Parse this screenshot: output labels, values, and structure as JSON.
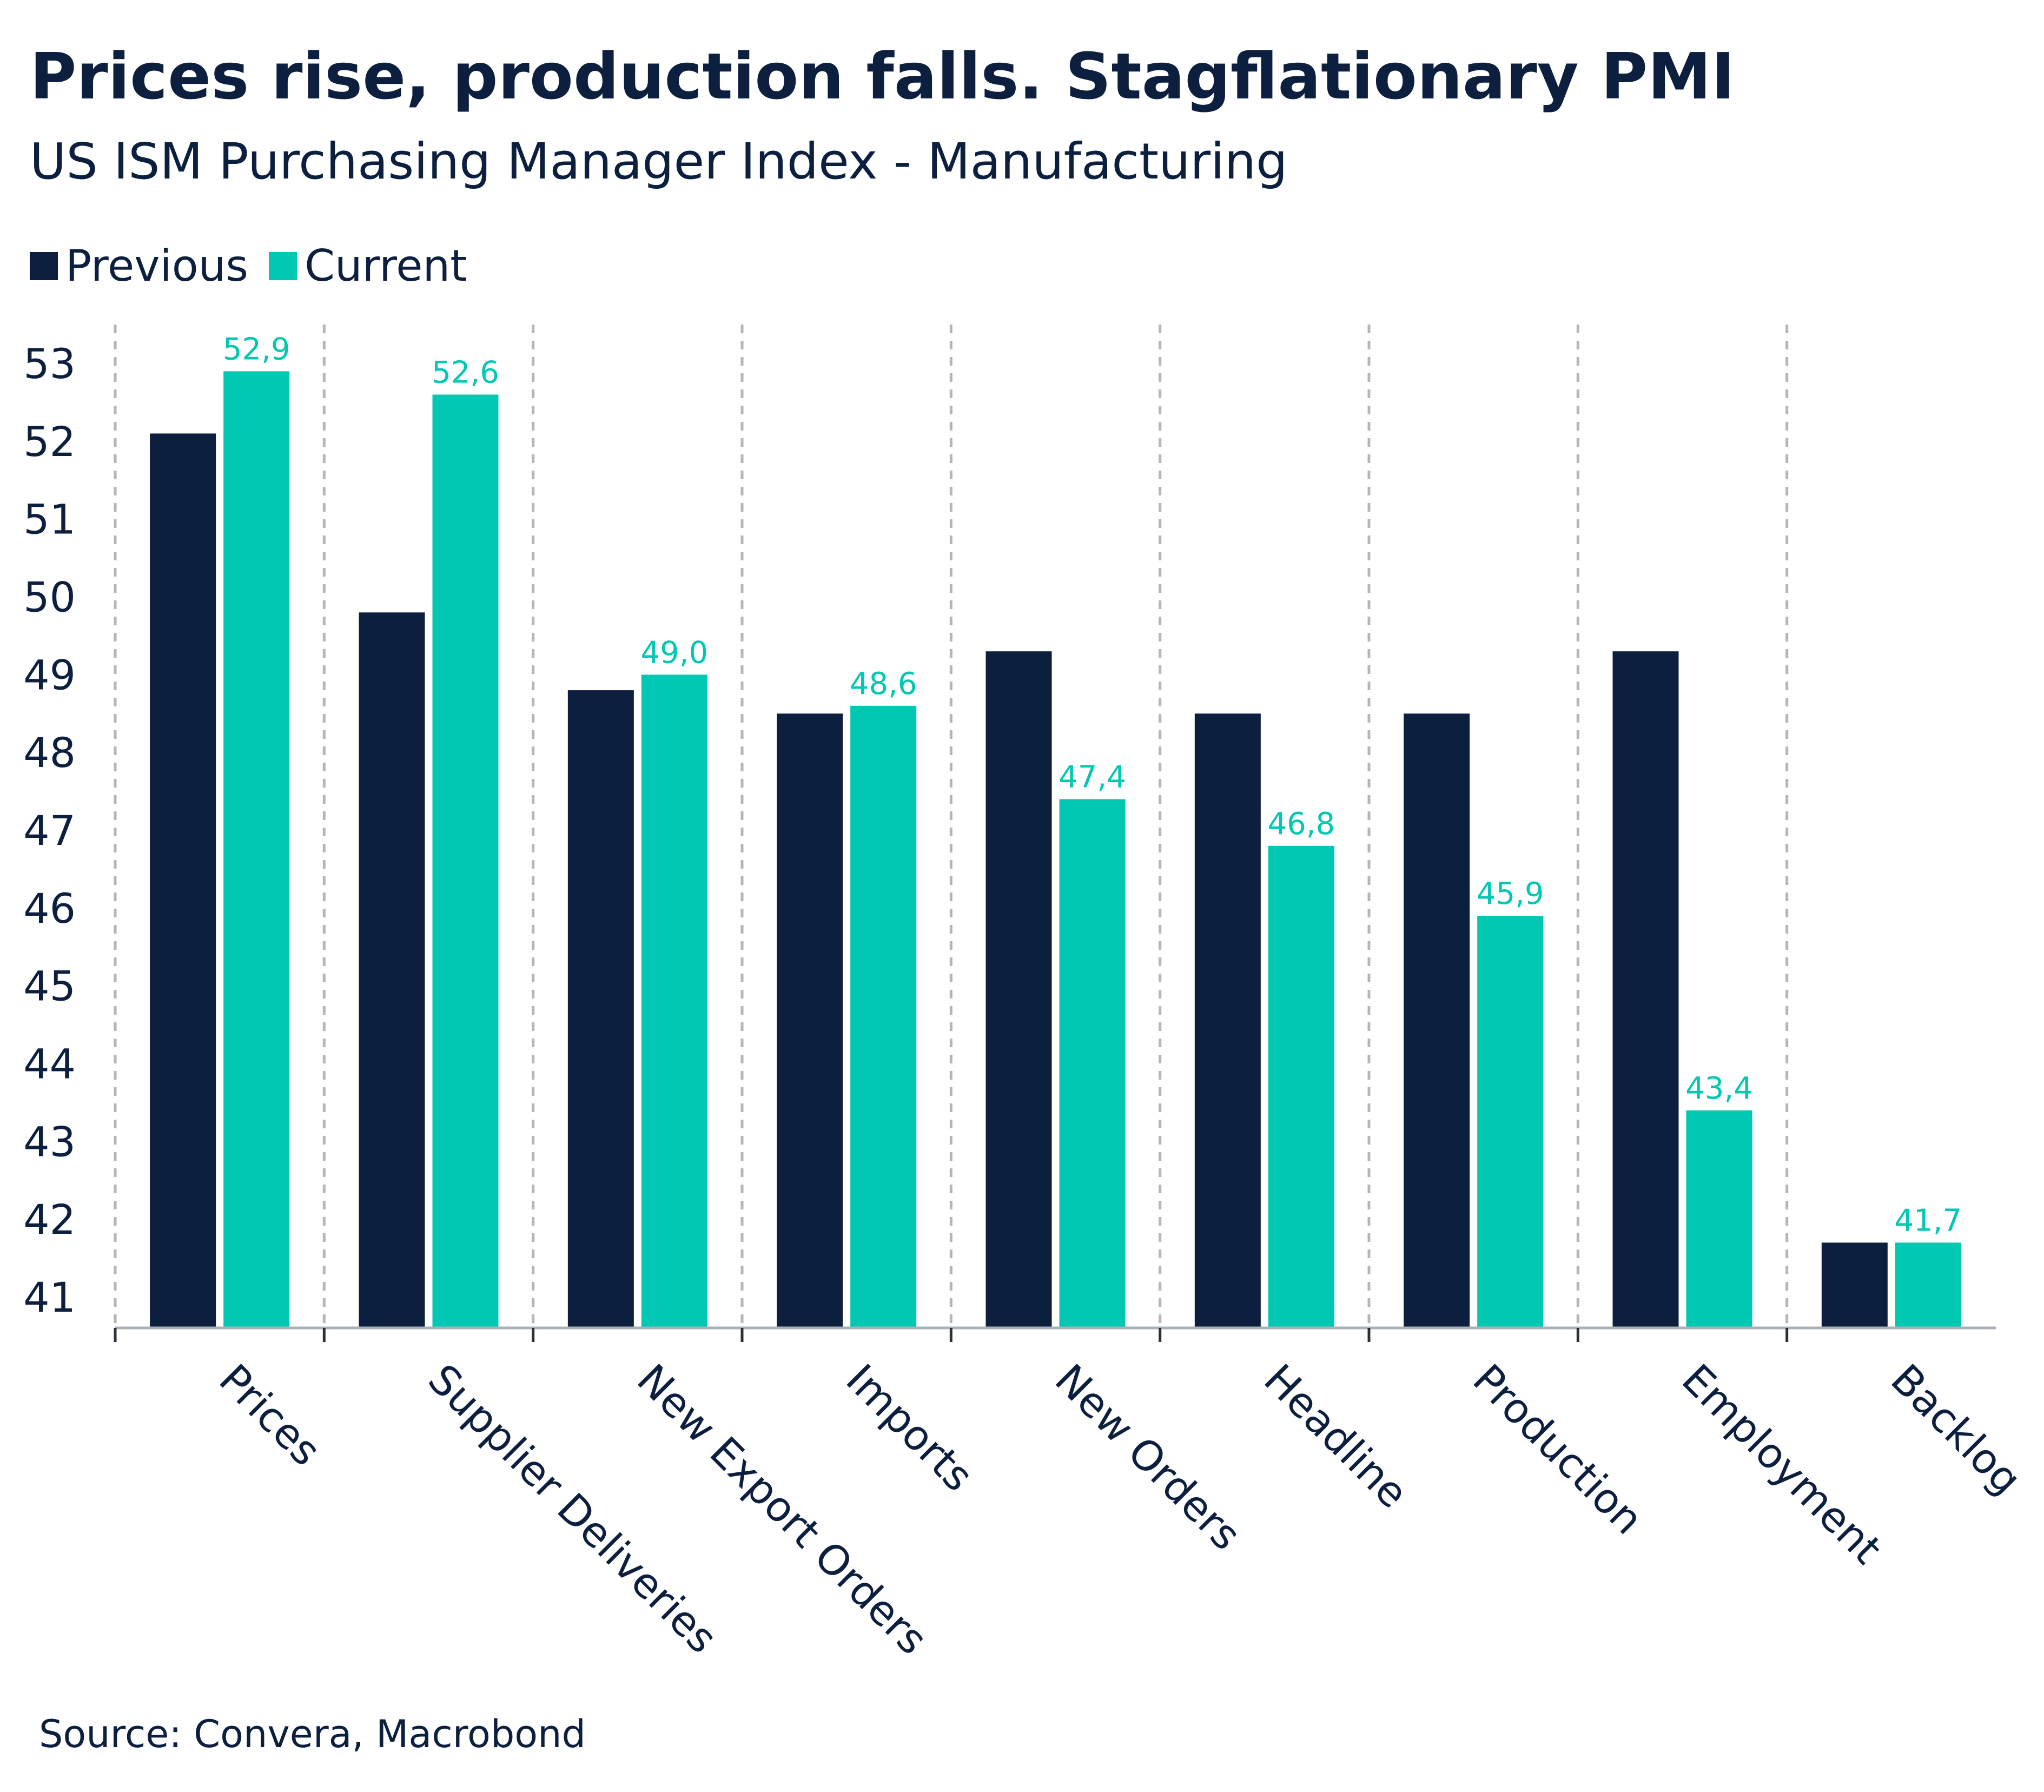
{
  "chart_data": {
    "type": "bar",
    "title": "Prices rise, production falls. Stagflationary PMI",
    "subtitle": "US ISM Purchasing Manager Index - Manufacturing",
    "source": "Source: Convera, Macrobond",
    "categories": [
      "Prices",
      "Supplier Deliveries",
      "New Export Orders",
      "Imports",
      "New Orders",
      "Headline",
      "Production",
      "Employment",
      "Backlog"
    ],
    "series": [
      {
        "name": "Previous",
        "color": "#0c1f3f",
        "values": [
          52.1,
          49.8,
          48.8,
          48.5,
          49.3,
          48.5,
          48.5,
          49.3,
          41.7
        ]
      },
      {
        "name": "Current",
        "color": "#00c8b3",
        "values": [
          52.9,
          52.6,
          49.0,
          48.6,
          47.4,
          46.8,
          45.9,
          43.4,
          41.7
        ],
        "labels": [
          "52,9",
          "52,6",
          "49,0",
          "48,6",
          "47,4",
          "46,8",
          "45,9",
          "43,4",
          "41,7"
        ]
      }
    ],
    "yticks": [
      41,
      42,
      43,
      44,
      45,
      46,
      47,
      48,
      49,
      50,
      51,
      52,
      53
    ],
    "ylim": [
      40.6,
      53.3
    ],
    "xlabel": "",
    "ylabel": "",
    "grid": "vertical dashed separators",
    "legend_position": "top-left"
  }
}
